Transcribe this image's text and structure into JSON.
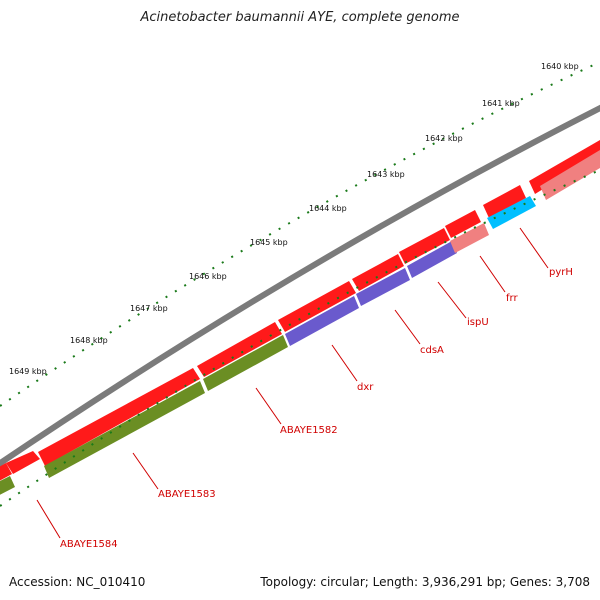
{
  "title": "Acinetobacter baumannii AYE, complete genome",
  "footer": {
    "accession": "Accession: NC_010410",
    "info": "Topology: circular; Length: 3,936,291 bp; Genes: 3,708"
  },
  "colors": {
    "backbone": "#7f7f7f",
    "tick": "#1a7a1a",
    "gene_default": "#ff0000",
    "gene_highlight_green": "#6b8e23",
    "gene_highlight_purple": "#6a5acd",
    "gene_highlight_pink": "#f08080",
    "gene_highlight_cyan": "#00bfff",
    "label": "#d00000"
  },
  "kbp_labels": [
    "1640 kbp",
    "1641 kbp",
    "1642 kbp",
    "1643 kbp",
    "1644 kbp",
    "1645 kbp",
    "1646 kbp",
    "1647 kbp",
    "1648 kbp",
    "1649 kbp"
  ],
  "gene_labels": [
    "pyrH",
    "frr",
    "ispU",
    "cdsA",
    "dxr",
    "ABAYE1582",
    "ABAYE1583",
    "ABAYE1584"
  ]
}
